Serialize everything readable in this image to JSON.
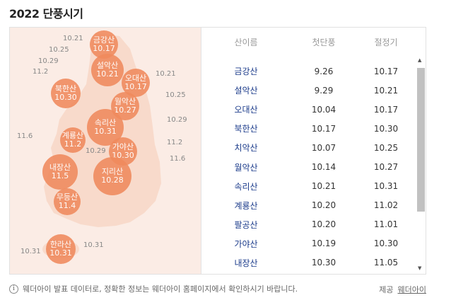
{
  "title": "2022 단풍시기",
  "table": {
    "headers": [
      "산이름",
      "첫단풍",
      "절정기"
    ],
    "rows": [
      {
        "name": "금강산",
        "first": "9.26",
        "peak": "10.17"
      },
      {
        "name": "설악산",
        "first": "9.29",
        "peak": "10.21"
      },
      {
        "name": "오대산",
        "first": "10.04",
        "peak": "10.17"
      },
      {
        "name": "북한산",
        "first": "10.17",
        "peak": "10.30"
      },
      {
        "name": "치악산",
        "first": "10.07",
        "peak": "10.25"
      },
      {
        "name": "월악산",
        "first": "10.14",
        "peak": "10.27"
      },
      {
        "name": "속리산",
        "first": "10.21",
        "peak": "10.31"
      },
      {
        "name": "계룡산",
        "first": "10.20",
        "peak": "11.02"
      },
      {
        "name": "팔공산",
        "first": "10.20",
        "peak": "11.01"
      },
      {
        "name": "가야산",
        "first": "10.19",
        "peak": "10.30"
      },
      {
        "name": "내장산",
        "first": "10.30",
        "peak": "11.05"
      }
    ]
  },
  "map": {
    "bubbles": [
      {
        "name": "금강산",
        "date": "10.17"
      },
      {
        "name": "설악산",
        "date": "10.21"
      },
      {
        "name": "오대산",
        "date": "10.17"
      },
      {
        "name": "북한산",
        "date": "10.30"
      },
      {
        "name": "월악산",
        "date": "10.27"
      },
      {
        "name": "속리산",
        "date": "10.31"
      },
      {
        "name": "계룡산",
        "date": "11.2"
      },
      {
        "name": "가야산",
        "date": "10.30"
      },
      {
        "name": "내장산",
        "date": "11.5"
      },
      {
        "name": "지리산",
        "date": "10.28"
      },
      {
        "name": "무등산",
        "date": "11.4"
      },
      {
        "name": "한라산",
        "date": "10.31"
      }
    ],
    "labels": [
      "10.21",
      "10.25",
      "10.29",
      "11.2",
      "10.21",
      "10.25",
      "10.29",
      "11.6",
      "11.2",
      "11.6",
      "10.29",
      "10.31",
      "10.31"
    ]
  },
  "footer": {
    "info_icon": "info-icon",
    "note": "웨더아이 발표 데이터로, 정확한 정보는 웨더아이 홈페이지에서 확인하시기 바랍니다.",
    "credit_label": "제공",
    "credit_link": "웨더아이"
  },
  "colors": {
    "map_bg": "#fbece5",
    "land": "#f7d4c2",
    "bubble": "#f08a5d",
    "link": "#1a3a8a"
  }
}
